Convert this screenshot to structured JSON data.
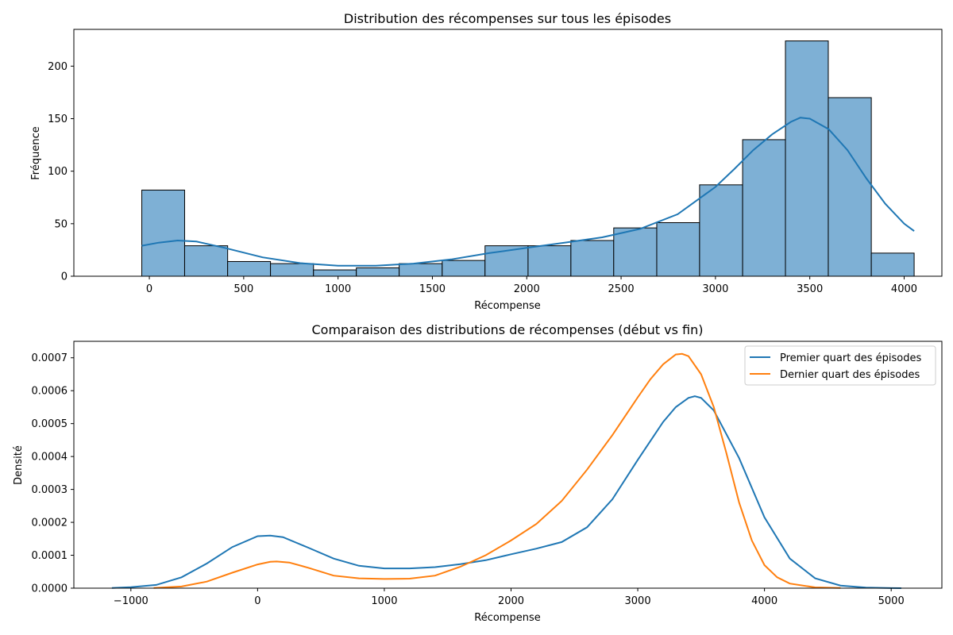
{
  "chart_data": [
    {
      "type": "bar",
      "title": "Distribution des récompenses sur tous les épisodes",
      "xlabel": "Récompense",
      "ylabel": "Fréquence",
      "xlim": [
        -400,
        4200
      ],
      "ylim": [
        0,
        235
      ],
      "xticks": [
        0,
        500,
        1000,
        1500,
        2000,
        2500,
        3000,
        3500,
        4000
      ],
      "yticks": [
        0,
        50,
        100,
        150,
        200
      ],
      "bar_color": "#7eb0d5",
      "kde_color": "#1f77b4",
      "bins": [
        {
          "x0": -40,
          "x1": 187,
          "value": 82
        },
        {
          "x0": 187,
          "x1": 415,
          "value": 29
        },
        {
          "x0": 415,
          "x1": 642,
          "value": 14
        },
        {
          "x0": 642,
          "x1": 870,
          "value": 12
        },
        {
          "x0": 870,
          "x1": 1097,
          "value": 6
        },
        {
          "x0": 1097,
          "x1": 1324,
          "value": 8
        },
        {
          "x0": 1324,
          "x1": 1552,
          "value": 12
        },
        {
          "x0": 1552,
          "x1": 1779,
          "value": 15
        },
        {
          "x0": 1779,
          "x1": 2007,
          "value": 29
        },
        {
          "x0": 2007,
          "x1": 2234,
          "value": 29
        },
        {
          "x0": 2234,
          "x1": 2461,
          "value": 34
        },
        {
          "x0": 2461,
          "x1": 2689,
          "value": 46
        },
        {
          "x0": 2689,
          "x1": 2916,
          "value": 51
        },
        {
          "x0": 2916,
          "x1": 3144,
          "value": 87
        },
        {
          "x0": 3144,
          "x1": 3371,
          "value": 130
        },
        {
          "x0": 3371,
          "x1": 3598,
          "value": 224
        },
        {
          "x0": 3598,
          "x1": 3826,
          "value": 170
        },
        {
          "x0": 3826,
          "x1": 4053,
          "value": 22
        }
      ],
      "kde": {
        "x": [
          -40,
          50,
          150,
          250,
          400,
          600,
          800,
          1000,
          1200,
          1400,
          1600,
          1800,
          2000,
          2200,
          2400,
          2600,
          2800,
          3000,
          3100,
          3200,
          3300,
          3400,
          3450,
          3500,
          3600,
          3700,
          3800,
          3900,
          4000,
          4053
        ],
        "y": [
          29,
          32,
          34,
          33,
          27,
          18,
          12.5,
          10,
          10,
          12,
          16,
          22,
          27,
          32,
          37,
          45,
          59,
          85,
          102,
          120,
          135,
          147,
          151,
          150,
          140,
          120,
          93,
          69,
          50,
          43
        ]
      }
    },
    {
      "type": "line",
      "title": "Comparaison des distributions de récompenses (début vs fin)",
      "xlabel": "Récompense",
      "ylabel": "Densité",
      "xlim": [
        -1450,
        5400
      ],
      "ylim": [
        0,
        0.00075
      ],
      "xticks": [
        -1000,
        0,
        1000,
        2000,
        3000,
        4000,
        5000
      ],
      "yticks": [
        0,
        0.0001,
        0.0002,
        0.0003,
        0.0004,
        0.0005,
        0.0006,
        0.0007
      ],
      "ytick_labels": [
        "0.0000",
        "0.0001",
        "0.0002",
        "0.0003",
        "0.0004",
        "0.0005",
        "0.0006",
        "0.0007"
      ],
      "legend_position": "top-right",
      "series": [
        {
          "name": "Premier quart des épisodes",
          "color": "#1f77b4",
          "x": [
            -1150,
            -1000,
            -800,
            -600,
            -400,
            -200,
            0,
            100,
            200,
            400,
            600,
            800,
            1000,
            1200,
            1400,
            1600,
            1800,
            2000,
            2200,
            2400,
            2600,
            2800,
            3000,
            3200,
            3300,
            3400,
            3450,
            3500,
            3600,
            3800,
            4000,
            4200,
            4400,
            4600,
            4800,
            5000,
            5080
          ],
          "y": [
            5e-07,
            3e-06,
            1e-05,
            3.3e-05,
            7.5e-05,
            0.000125,
            0.000158,
            0.00016,
            0.000155,
            0.000123,
            9e-05,
            6.8e-05,
            6e-05,
            6e-05,
            6.4e-05,
            7.3e-05,
            8.5e-05,
            0.000103,
            0.00012,
            0.00014,
            0.000185,
            0.00027,
            0.00039,
            0.000505,
            0.00055,
            0.000578,
            0.000583,
            0.000578,
            0.00054,
            0.000395,
            0.000215,
            9e-05,
            3e-05,
            8e-06,
            2e-06,
            2e-07,
            1e-07
          ]
        },
        {
          "name": "Dernier quart des épisodes",
          "color": "#ff7f0e",
          "x": [
            -820,
            -600,
            -400,
            -200,
            0,
            100,
            150,
            250,
            400,
            600,
            800,
            1000,
            1200,
            1400,
            1600,
            1800,
            2000,
            2200,
            2400,
            2600,
            2800,
            3000,
            3100,
            3200,
            3300,
            3350,
            3400,
            3500,
            3600,
            3700,
            3800,
            3900,
            4000,
            4100,
            4200,
            4400,
            4600
          ],
          "y": [
            5e-07,
            5e-06,
            2e-05,
            4.7e-05,
            7.2e-05,
            8e-05,
            8.1e-05,
            7.8e-05,
            6.2e-05,
            3.8e-05,
            3e-05,
            2.8e-05,
            2.9e-05,
            3.8e-05,
            6.5e-05,
            0.0001,
            0.000145,
            0.000195,
            0.000265,
            0.00036,
            0.000465,
            0.00058,
            0.000635,
            0.00068,
            0.00071,
            0.000712,
            0.000705,
            0.00065,
            0.00055,
            0.00041,
            0.00026,
            0.000145,
            7e-05,
            3.3e-05,
            1.4e-05,
            2.5e-06,
            4e-07
          ]
        }
      ]
    }
  ]
}
